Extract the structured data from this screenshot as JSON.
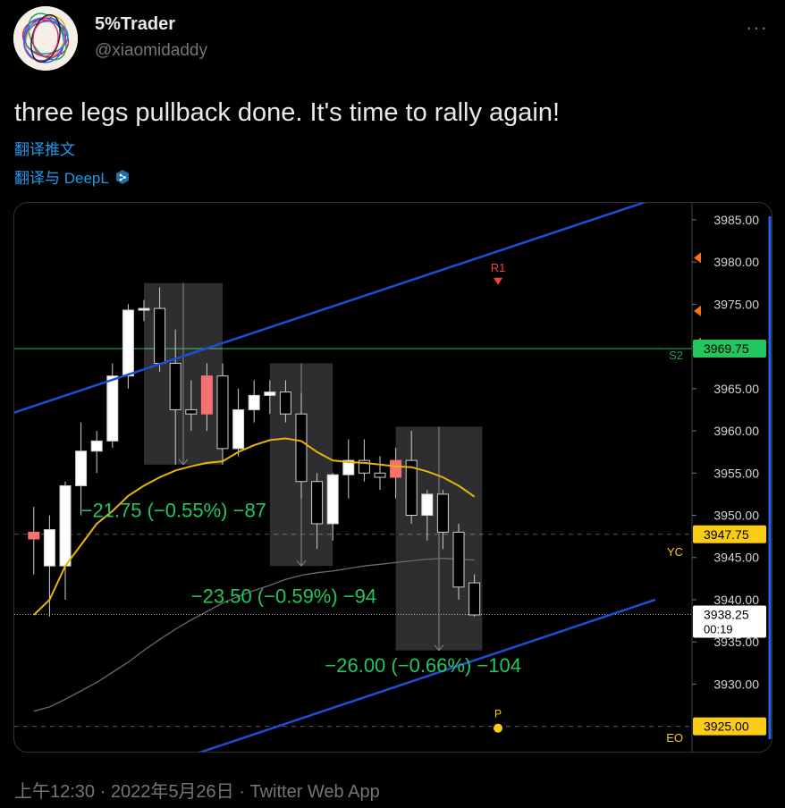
{
  "user": {
    "display_name": "5%Trader",
    "handle": "@xiaomidaddy",
    "more_icon": "more-icon"
  },
  "tweet": {
    "text": "three legs pullback done. It's time to rally again!",
    "translate_label": "翻译推文",
    "deepl_label": "翻译与 DeepL",
    "timestamp": "上午12:30 · 2022年5月26日 · Twitter Web App"
  },
  "chart_data": {
    "type": "candlestick",
    "ylim": [
      3922,
      3987
    ],
    "y_ticks": [
      "3985.00",
      "3980.00",
      "3975.00",
      "3970.00",
      "3965.00",
      "3960.00",
      "3955.00",
      "3950.00",
      "3945.00",
      "3940.00",
      "3935.00",
      "3930.00"
    ],
    "y_tick_values": [
      3985,
      3980,
      3975,
      3970,
      3965,
      3960,
      3955,
      3950,
      3945,
      3940,
      3935,
      3930
    ],
    "price_tags": [
      {
        "label": "3969.75",
        "value": 3969.75,
        "color": "#22c55e",
        "text_color": "#000000"
      },
      {
        "label": "3947.75",
        "value": 3947.75,
        "color": "#facc15",
        "text_color": "#000000"
      },
      {
        "label": "3938.25",
        "sublabel": "00:19",
        "value": 3938.25,
        "color": "#ffffff",
        "text_color": "#000000"
      },
      {
        "label": "3925.00",
        "value": 3925.0,
        "color": "#facc15",
        "text_color": "#000000"
      }
    ],
    "level_labels": [
      {
        "label": "S2",
        "value": 3969.0,
        "color": "#16a34a"
      },
      {
        "label": "YC",
        "value": 3945.7,
        "color": "#facc15"
      },
      {
        "label": "EO",
        "value": 3923.7,
        "color": "#facc15"
      }
    ],
    "reference_lines": [
      {
        "name": "S2",
        "value": 3969.75,
        "color": "#15803d",
        "style": "solid"
      },
      {
        "name": "YC",
        "value": 3947.75,
        "color": "#555555",
        "style": "dashed"
      },
      {
        "name": "current",
        "value": 3938.25,
        "color": "#aaaaaa",
        "style": "dotted"
      },
      {
        "name": "EO",
        "value": 3925.0,
        "color": "#555555",
        "style": "dashed"
      }
    ],
    "markers": [
      {
        "label": "R1",
        "bar": 29.5,
        "value": 3977.6,
        "color": "#ef4444"
      },
      {
        "label": "P",
        "bar": 29.5,
        "value": 3925.0,
        "color": "#facc15"
      }
    ],
    "candles": [
      {
        "o": 3948,
        "h": 3951,
        "l": 3943,
        "c": 3947.2,
        "color": "red"
      },
      {
        "o": 3944,
        "h": 3950,
        "l": 3938,
        "c": 3948.3,
        "color": "white"
      },
      {
        "o": 3944,
        "h": 3954,
        "l": 3940,
        "c": 3953.5,
        "color": "white"
      },
      {
        "o": 3953.5,
        "h": 3961,
        "l": 3950,
        "c": 3957.6,
        "color": "white"
      },
      {
        "o": 3957.6,
        "h": 3960,
        "l": 3955,
        "c": 3958.8,
        "color": "white"
      },
      {
        "o": 3958.8,
        "h": 3968,
        "l": 3958,
        "c": 3966.5,
        "color": "white"
      },
      {
        "o": 3966.5,
        "h": 3975,
        "l": 3965,
        "c": 3974.3,
        "color": "white"
      },
      {
        "o": 3974.3,
        "h": 3975.5,
        "l": 3973,
        "c": 3974.5,
        "color": "white"
      },
      {
        "o": 3974.5,
        "h": 3977,
        "l": 3967,
        "c": 3968,
        "color": "black"
      },
      {
        "o": 3968,
        "h": 3972,
        "l": 3956,
        "c": 3962.5,
        "color": "black"
      },
      {
        "o": 3962.5,
        "h": 3966,
        "l": 3960,
        "c": 3962,
        "color": "black"
      },
      {
        "o": 3962,
        "h": 3968,
        "l": 3960,
        "c": 3966.5,
        "color": "red"
      },
      {
        "o": 3966.5,
        "h": 3968,
        "l": 3956,
        "c": 3957.9,
        "color": "black"
      },
      {
        "o": 3957.9,
        "h": 3965,
        "l": 3957,
        "c": 3962.5,
        "color": "white"
      },
      {
        "o": 3962.5,
        "h": 3966,
        "l": 3961,
        "c": 3964.2,
        "color": "white"
      },
      {
        "o": 3964.2,
        "h": 3966,
        "l": 3962,
        "c": 3964.6,
        "color": "white"
      },
      {
        "o": 3964.6,
        "h": 3966,
        "l": 3961,
        "c": 3962,
        "color": "black"
      },
      {
        "o": 3962,
        "h": 3964.5,
        "l": 3952,
        "c": 3954,
        "color": "black"
      },
      {
        "o": 3954,
        "h": 3955,
        "l": 3946,
        "c": 3949,
        "color": "black"
      },
      {
        "o": 3949,
        "h": 3955,
        "l": 3947,
        "c": 3954.8,
        "color": "white"
      },
      {
        "o": 3954.8,
        "h": 3959,
        "l": 3952,
        "c": 3956.5,
        "color": "white"
      },
      {
        "o": 3956.5,
        "h": 3959,
        "l": 3954,
        "c": 3955,
        "color": "black"
      },
      {
        "o": 3955,
        "h": 3957,
        "l": 3953,
        "c": 3954.5,
        "color": "black"
      },
      {
        "o": 3954.5,
        "h": 3958,
        "l": 3952,
        "c": 3956.5,
        "color": "red"
      },
      {
        "o": 3956.5,
        "h": 3960,
        "l": 3949,
        "c": 3950,
        "color": "black"
      },
      {
        "o": 3950,
        "h": 3953,
        "l": 3947,
        "c": 3952.5,
        "color": "white"
      },
      {
        "o": 3952.5,
        "h": 3953,
        "l": 3946,
        "c": 3948,
        "color": "black"
      },
      {
        "o": 3948,
        "h": 3949,
        "l": 3940,
        "c": 3941.5,
        "color": "black"
      },
      {
        "o": 3942,
        "h": 3943,
        "l": 3938,
        "c": 3938.2,
        "color": "black"
      }
    ],
    "ema_fast": [
      3938.2,
      3940,
      3944,
      3946.5,
      3949,
      3950.5,
      3952.3,
      3953.5,
      3954.5,
      3955.3,
      3955.8,
      3956.2,
      3956.4,
      3957.5,
      3958.3,
      3958.9,
      3959.1,
      3958.8,
      3957.5,
      3956.5,
      3956.3,
      3956.2,
      3956,
      3955.8,
      3955.7,
      3955.2,
      3954.5,
      3953.5,
      3952.2
    ],
    "sma_slow": [
      3926.8,
      3927.3,
      3928.2,
      3929.2,
      3930.2,
      3931.4,
      3932.6,
      3934.0,
      3935.3,
      3936.5,
      3937.6,
      3938.6,
      3939.6,
      3940.4,
      3941.1,
      3941.7,
      3942.4,
      3942.9,
      3943.2,
      3943.4,
      3943.7,
      3944.0,
      3944.2,
      3944.4,
      3944.6,
      3944.8,
      3944.9,
      3944.8,
      3944.7
    ],
    "channel_lines": [
      {
        "name": "upper",
        "from": {
          "bar": -1,
          "value": 3962
        },
        "to": {
          "bar": 40,
          "value": 3987.5
        },
        "color": "#1d4ed8"
      },
      {
        "name": "lower",
        "from": {
          "bar": 8,
          "value": 3920
        },
        "to": {
          "bar": 40,
          "value": 3940
        },
        "color": "#1d4ed8"
      }
    ],
    "pullback_boxes": [
      {
        "from_bar": 7.5,
        "to_bar": 11.5,
        "top": 3977.5,
        "bottom": 3956,
        "label": "−21.75 (−0.55%) −87",
        "label_bar": 3.5,
        "label_value": 3949.8
      },
      {
        "from_bar": 15.5,
        "to_bar": 18.5,
        "top": 3968,
        "bottom": 3944,
        "label": "−23.50 (−0.59%) −94",
        "label_bar": 10.5,
        "label_value": 3939.6
      },
      {
        "from_bar": 23.5,
        "to_bar": 28,
        "top": 3960.5,
        "bottom": 3934,
        "label": "−26.00 (−0.66%) −104",
        "label_bar": 19,
        "label_value": 3931.4
      }
    ]
  }
}
